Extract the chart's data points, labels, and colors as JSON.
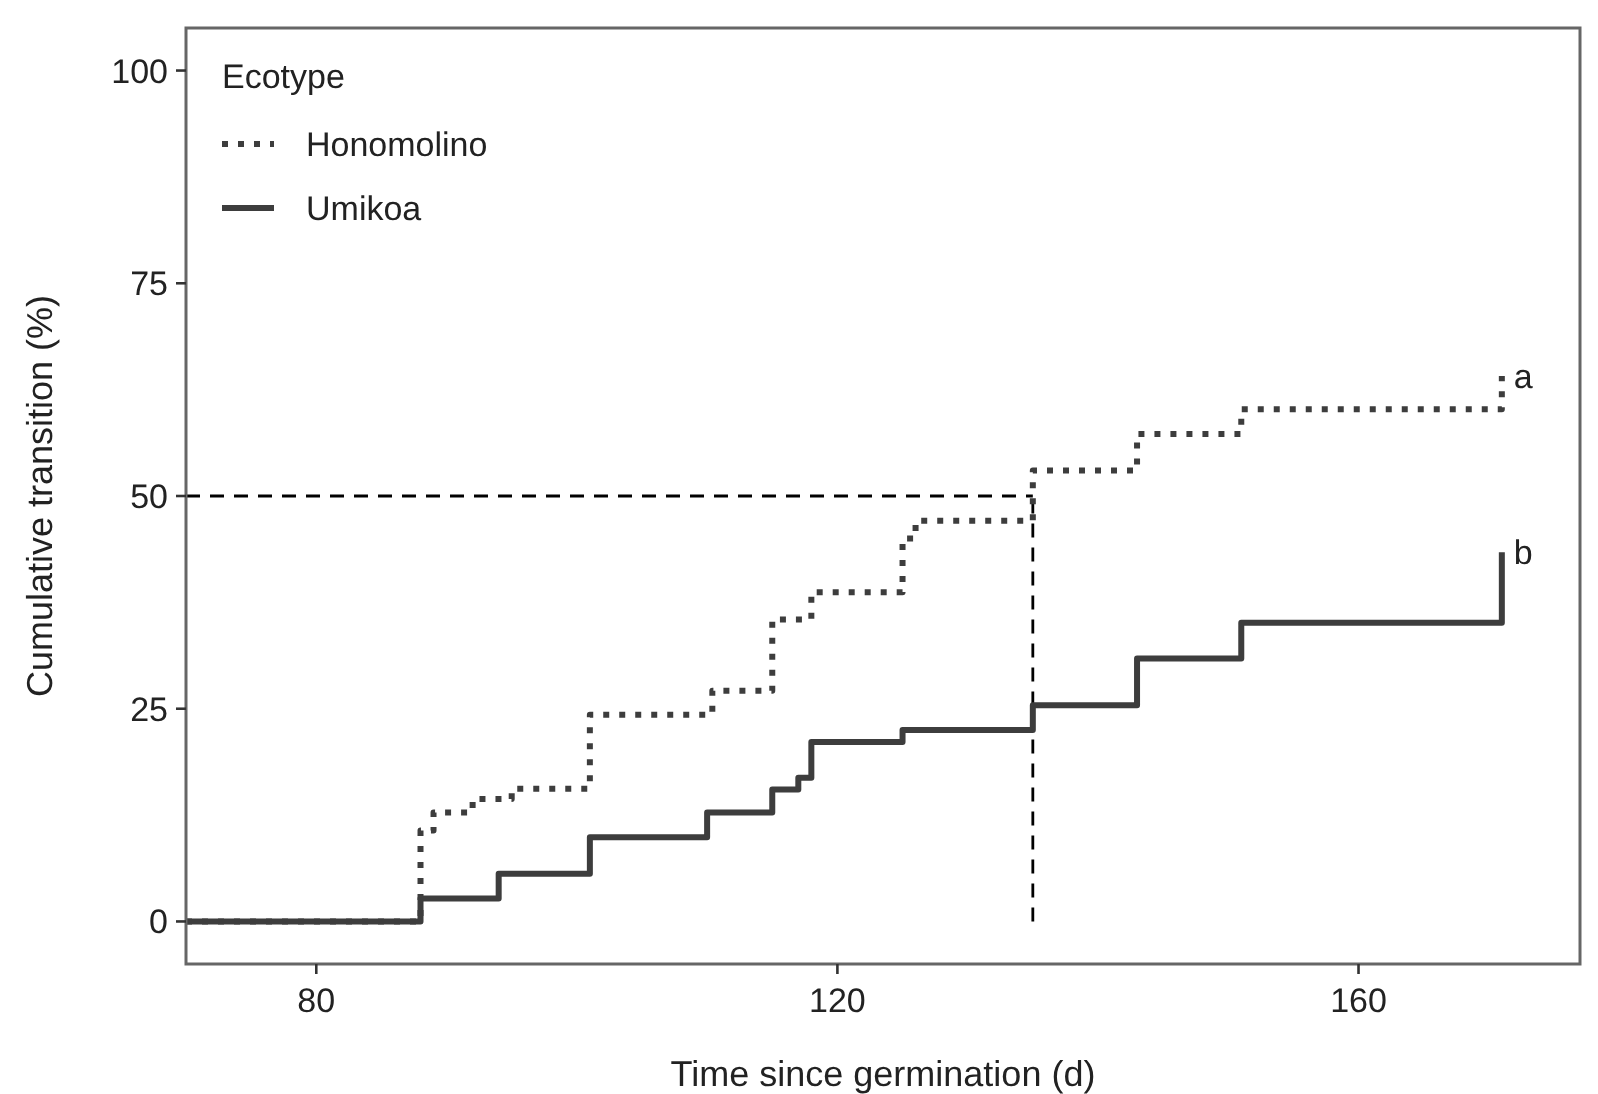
{
  "chart_data": {
    "type": "step",
    "xlabel": "Time since germination (d)",
    "ylabel": "Cumulative transition (%)",
    "legend_title": "Ecotype",
    "legend": "top left",
    "grid": false,
    "xlim": [
      70,
      177
    ],
    "xticks": [
      80,
      120,
      160
    ],
    "ylim": [
      -5,
      105
    ],
    "yticks": [
      0,
      25,
      50,
      75,
      100
    ],
    "series": [
      {
        "name": "Honomolino",
        "color": "#3d3d3d",
        "line_style": "dotted",
        "x": [
          70,
          88,
          89,
          92,
          95,
          101,
          110.4,
          115,
          118,
          125,
          126,
          135,
          143,
          151,
          171,
          171
        ],
        "values": [
          0,
          10.7,
          12.8,
          14.4,
          15.6,
          24.3,
          27.1,
          35.5,
          38.7,
          45,
          47.1,
          53,
          57.3,
          60.2,
          60.2,
          64.1
        ]
      },
      {
        "name": "Umikoa",
        "color": "#3d3d3d",
        "line_style": "solid",
        "x": [
          70,
          88,
          94,
          101,
          110,
          115,
          117,
          118,
          125,
          135,
          143,
          151,
          171,
          171
        ],
        "values": [
          0,
          2.7,
          5.6,
          9.9,
          12.8,
          15.5,
          16.9,
          21.1,
          22.5,
          25.4,
          30.9,
          35.1,
          35.1,
          43.4
        ]
      }
    ],
    "ref_lines": [
      {
        "axis": "y",
        "value": 50,
        "line_style": "dashed",
        "color": "#000000"
      },
      {
        "axis": "x",
        "value": 135,
        "line_style": "dashed",
        "color": "#000000"
      }
    ],
    "annotations": [
      {
        "text": "a",
        "x": 171,
        "y": 64.1
      },
      {
        "text": "b",
        "x": 171,
        "y": 43.4
      }
    ]
  }
}
